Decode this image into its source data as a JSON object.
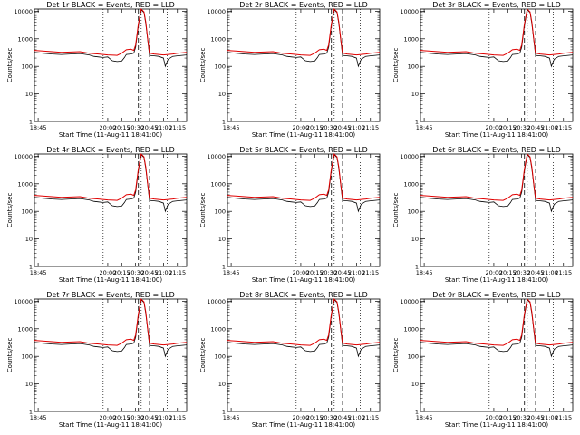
{
  "colors": {
    "events": "#000000",
    "lld": "#e00000",
    "axes": "#000000",
    "background": "#ffffff"
  },
  "y_axis": {
    "scale": "log",
    "range": [
      1,
      12000
    ],
    "tick_values": [
      1,
      10,
      100,
      1000,
      10000
    ],
    "tick_labels": [
      "1",
      "10",
      "100",
      "1000",
      "10000"
    ]
  },
  "x_axis": {
    "range": [
      "18:41:00",
      "21:25:00"
    ],
    "tick_values": [
      "18:45",
      "20:00",
      "20:15",
      "20:30",
      "20:45",
      "21:00",
      "21:15"
    ],
    "tick_labels": [
      "18:45",
      "20:00",
      "20:15",
      "20:30",
      "20:45",
      "21:00",
      "21:15"
    ],
    "dotted_lines": [
      "19:55",
      "20:36",
      "21:04"
    ],
    "dashed_lines": [
      "20:33",
      "20:45"
    ]
  },
  "panels": [
    {
      "title": "Det 1r BLACK = Events, RED = LLD",
      "ylabel": "Counts/sec",
      "xlabel": "Start Time (11-Aug-11 18:41:00)"
    },
    {
      "title": "Det 2r BLACK = Events, RED = LLD",
      "ylabel": "Counts/sec",
      "xlabel": "Start Time (11-Aug-11 18:41:00)"
    },
    {
      "title": "Det 3r BLACK = Events, RED = LLD",
      "ylabel": "Counts/sec",
      "xlabel": "Start Time (11-Aug-11 18:41:00)"
    },
    {
      "title": "Det 4r BLACK = Events, RED = LLD",
      "ylabel": "Counts/sec",
      "xlabel": "Start Time (11-Aug-11 18:41:00)"
    },
    {
      "title": "Det 5r BLACK = Events, RED = LLD",
      "ylabel": "Counts/sec",
      "xlabel": "Start Time (11-Aug-11 18:41:00)"
    },
    {
      "title": "Det 6r BLACK = Events, RED = LLD",
      "ylabel": "Counts/sec",
      "xlabel": "Start Time (11-Aug-11 18:41:00)"
    },
    {
      "title": "Det 7r BLACK = Events, RED = LLD",
      "ylabel": "Counts/sec",
      "xlabel": "Start Time (11-Aug-11 18:41:00)"
    },
    {
      "title": "Det 8r BLACK = Events, RED = LLD",
      "ylabel": "Counts/sec",
      "xlabel": "Start Time (11-Aug-11 18:41:00)"
    },
    {
      "title": "Det 9r BLACK = Events, RED = LLD",
      "ylabel": "Counts/sec",
      "xlabel": "Start Time (11-Aug-11 18:41:00)"
    }
  ],
  "chart_data": {
    "type": "line",
    "x_units": "time (HH:MM)",
    "y_units": "Counts/sec",
    "series": [
      {
        "name": "BLACK = Events",
        "x": [
          "18:41",
          "18:50",
          "19:00",
          "19:10",
          "19:20",
          "19:30",
          "19:40",
          "19:45",
          "19:50",
          "19:55",
          "20:00",
          "20:05",
          "20:10",
          "20:15",
          "20:18",
          "20:20",
          "20:25",
          "20:28",
          "20:30",
          "20:33",
          "20:36",
          "20:39",
          "20:41",
          "20:43",
          "20:45",
          "20:50",
          "20:55",
          "21:00",
          "21:02",
          "21:05",
          "21:10",
          "21:15",
          "21:20",
          "21:25"
        ],
        "values": [
          320,
          300,
          280,
          270,
          280,
          290,
          260,
          230,
          220,
          210,
          220,
          160,
          150,
          155,
          210,
          270,
          280,
          300,
          500,
          3000,
          11000,
          9000,
          3500,
          900,
          250,
          240,
          230,
          200,
          100,
          180,
          230,
          240,
          250,
          260
        ]
      },
      {
        "name": "RED = LLD",
        "x": [
          "18:41",
          "18:50",
          "19:00",
          "19:10",
          "19:20",
          "19:30",
          "19:40",
          "19:50",
          "20:00",
          "20:10",
          "20:15",
          "20:20",
          "20:25",
          "20:28",
          "20:30",
          "20:33",
          "20:36",
          "20:39",
          "20:41",
          "20:43",
          "20:45",
          "20:50",
          "20:55",
          "21:00",
          "21:05",
          "21:10",
          "21:15",
          "21:20",
          "21:25"
        ],
        "values": [
          380,
          360,
          340,
          320,
          330,
          340,
          300,
          280,
          260,
          250,
          300,
          400,
          420,
          380,
          600,
          3500,
          12000,
          9500,
          4000,
          1000,
          300,
          280,
          270,
          260,
          270,
          280,
          300,
          310,
          320
        ]
      }
    ]
  }
}
